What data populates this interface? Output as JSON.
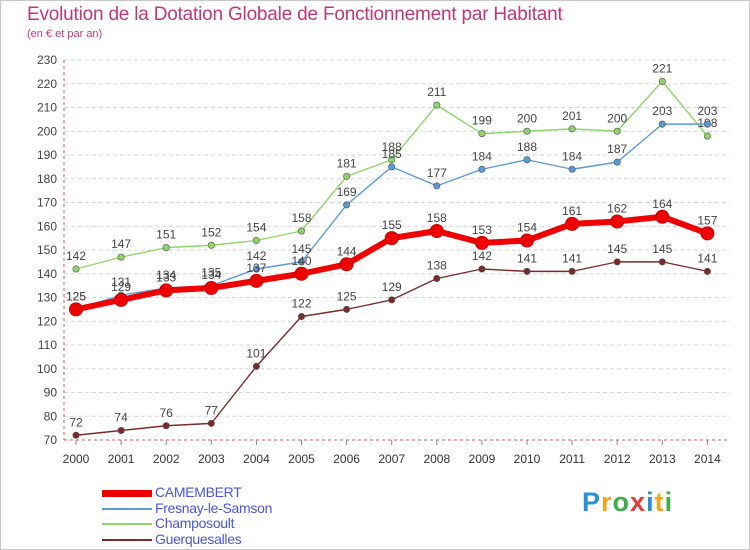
{
  "title": "Evolution de la Dotation Globale de Fonctionnement par Habitant",
  "subtitle": "(en € et par an)",
  "logo": {
    "text": "Proxiti",
    "colors": [
      "#2a8fd4",
      "#f2a51a",
      "#3fae49",
      "#e23b3b",
      "#2a8fd4",
      "#f2a51a",
      "#3fae49"
    ]
  },
  "chart_data": {
    "type": "line",
    "title": "Evolution de la Dotation Globale de Fonctionnement par Habitant",
    "subtitle": "(en € et par an)",
    "xlabel": "",
    "ylabel": "",
    "x": [
      2000,
      2001,
      2002,
      2003,
      2004,
      2005,
      2006,
      2007,
      2008,
      2009,
      2010,
      2011,
      2012,
      2013,
      2014
    ],
    "ylim": [
      70,
      230
    ],
    "yticks": [
      70,
      80,
      90,
      100,
      110,
      120,
      130,
      140,
      150,
      160,
      170,
      180,
      190,
      200,
      210,
      220,
      230
    ],
    "grid": "horizontal-dashed",
    "legend_position": "bottom-left",
    "series": [
      {
        "name": "Guerquesalles",
        "color": "#7a2a2a",
        "values": [
          72,
          74,
          76,
          77,
          101,
          122,
          125,
          129,
          138,
          142,
          141,
          141,
          145,
          145,
          141
        ]
      },
      {
        "name": "Champosoult",
        "color": "#8ed66a",
        "values": [
          142,
          147,
          151,
          152,
          154,
          158,
          181,
          188,
          211,
          199,
          200,
          201,
          200,
          221,
          198
        ]
      },
      {
        "name": "Fresnay-le-Samson",
        "color": "#5b9bd5",
        "values": [
          125,
          131,
          134,
          135,
          142,
          145,
          169,
          185,
          177,
          184,
          188,
          184,
          187,
          203,
          203
        ]
      },
      {
        "name": "CAMEMBERT",
        "color": "#ee0000",
        "values": [
          125,
          129,
          133,
          134,
          137,
          140,
          144,
          155,
          158,
          153,
          154,
          161,
          162,
          164,
          157
        ]
      }
    ],
    "legend_order": [
      "CAMEMBERT",
      "Fresnay-le-Samson",
      "Champosoult",
      "Guerquesalles"
    ]
  }
}
